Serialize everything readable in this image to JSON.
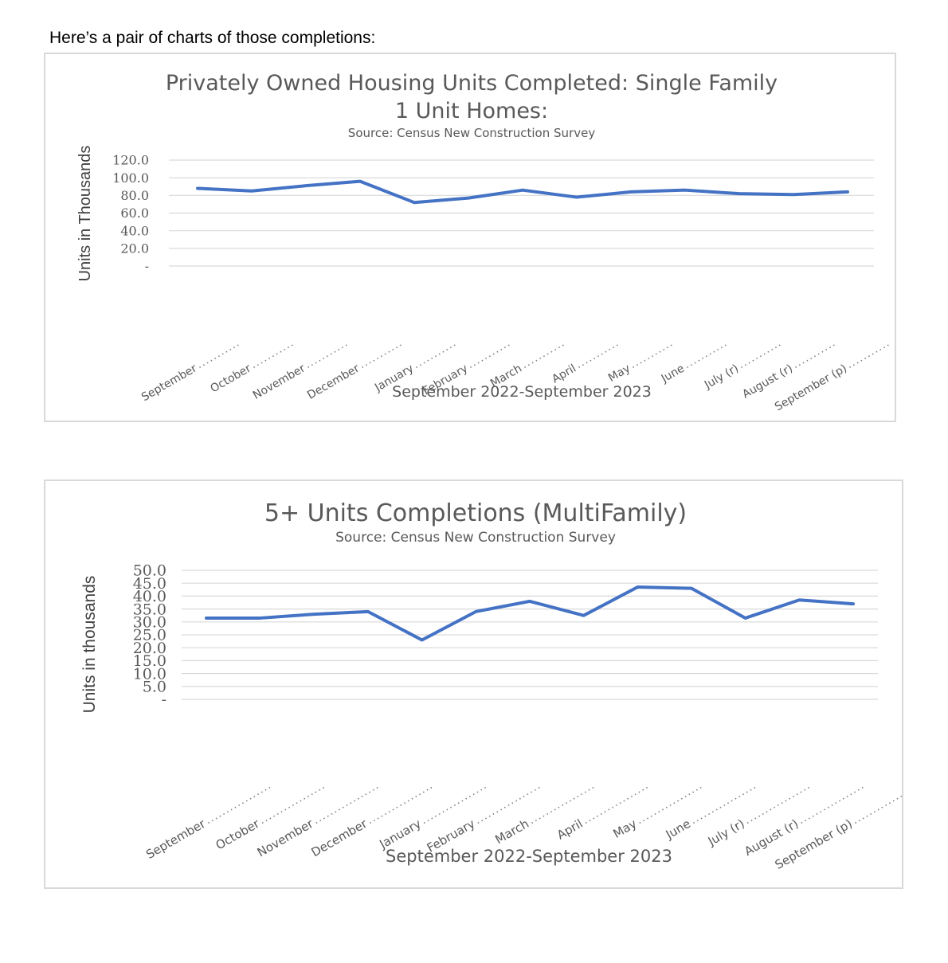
{
  "intro_text": "Here’s a pair of charts of those completions:",
  "colors": {
    "line": "#4472c4",
    "grid": "#d9d9d9",
    "text": "#595959"
  },
  "chart_data": [
    {
      "type": "line",
      "title_line1": "Privately Owned Housing Units Completed: Single Family",
      "title_line2": "1 Unit Homes:",
      "subtitle": "Source: Census New Construction Survey",
      "ylabel": "Units in Thousands",
      "xlabel": "September 2022-September 2023",
      "ylim": [
        0,
        120
      ],
      "y_ticks": [
        "-",
        "20.0",
        "40.0",
        "60.0",
        "80.0",
        "100.0",
        "120.0"
      ],
      "categories": [
        "September",
        "October",
        "November",
        "December",
        "January",
        "February",
        "March",
        "April",
        "May",
        "June",
        "July (r)",
        "August (r)",
        "September (p)"
      ],
      "series": [
        {
          "name": "Single Family",
          "values": [
            88,
            85,
            91,
            96,
            72,
            77,
            86,
            78,
            84,
            86,
            82,
            81,
            84
          ]
        }
      ]
    },
    {
      "type": "line",
      "title_line1": "5+ Units Completions (MultiFamily)",
      "subtitle": "Source: Census New Construction Survey",
      "ylabel": "Units in thousands",
      "xlabel": "September 2022-September 2023",
      "ylim": [
        0,
        50
      ],
      "y_ticks": [
        "-",
        "5.0",
        "10.0",
        "15.0",
        "20.0",
        "25.0",
        "30.0",
        "35.0",
        "40.0",
        "45.0",
        "50.0"
      ],
      "categories": [
        "September",
        "October",
        "November",
        "December",
        "January",
        "February",
        "March",
        "April",
        "May",
        "June",
        "July (r)",
        "August (r)",
        "September (p)"
      ],
      "series": [
        {
          "name": "5+ Units",
          "values": [
            31.5,
            31.5,
            33,
            34,
            23,
            34,
            38,
            32.5,
            43.5,
            43,
            31.5,
            38.5,
            37
          ]
        }
      ]
    }
  ]
}
